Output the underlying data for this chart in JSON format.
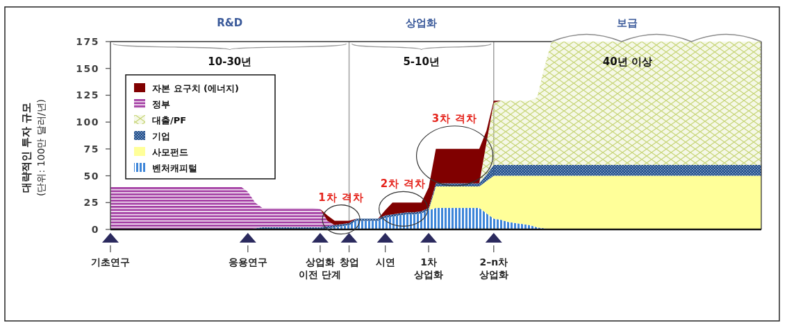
{
  "chart_data": {
    "type": "area",
    "stacked": true,
    "categories": [
      "기초연구",
      null,
      null,
      null,
      null,
      null,
      null,
      null,
      null,
      null,
      null,
      null,
      null,
      null,
      null,
      null,
      null,
      null,
      null,
      "응용연구",
      null,
      null,
      null,
      null,
      null,
      null,
      null,
      null,
      null,
      "상업화\n이전 단계",
      null,
      null,
      null,
      "창업",
      null,
      null,
      null,
      null,
      "시연",
      null,
      null,
      null,
      null,
      null,
      "1차\n상업화",
      null,
      null,
      null,
      null,
      null,
      null,
      null,
      null,
      "2–n차\n상업화",
      null,
      null,
      null,
      null,
      null,
      null,
      null,
      null,
      null,
      null,
      null,
      null,
      null,
      null,
      null,
      null,
      null,
      null,
      null,
      null,
      null,
      null,
      null,
      null,
      null,
      null,
      null,
      null,
      null,
      null,
      null,
      null,
      null,
      null,
      null,
      null,
      null
    ],
    "series": [
      {
        "name": "벤처캐피털",
        "color": "#3d85d8",
        "values": [
          null,
          null,
          null,
          null,
          null,
          null,
          null,
          null,
          null,
          null,
          null,
          null,
          null,
          null,
          null,
          null,
          null,
          null,
          null,
          null,
          null,
          null,
          null,
          null,
          null,
          null,
          null,
          null,
          null,
          0,
          1,
          2,
          3,
          4,
          8,
          8,
          8,
          8,
          11,
          12,
          13,
          14,
          14,
          15,
          18,
          20,
          20,
          20,
          20,
          20,
          20,
          20,
          15,
          10,
          9,
          7,
          6,
          5,
          4,
          2,
          1,
          0,
          null,
          null,
          null,
          null,
          null,
          null,
          null,
          null,
          null,
          null,
          null,
          null,
          null,
          null,
          null,
          null,
          null,
          null,
          null,
          null,
          null,
          null,
          null,
          null,
          null,
          null,
          null,
          null,
          null
        ]
      },
      {
        "name": "사모펀드",
        "color": "#ffff99",
        "values": [
          null,
          null,
          null,
          null,
          null,
          null,
          null,
          null,
          null,
          null,
          null,
          null,
          null,
          null,
          null,
          null,
          null,
          null,
          null,
          null,
          null,
          null,
          null,
          null,
          null,
          null,
          null,
          null,
          null,
          null,
          null,
          null,
          null,
          null,
          null,
          null,
          null,
          null,
          null,
          null,
          null,
          null,
          null,
          null,
          0,
          20,
          20,
          20,
          20,
          20,
          20,
          20,
          30,
          40,
          41,
          43,
          44,
          45,
          46,
          48,
          49,
          50,
          50,
          50,
          50,
          50,
          50,
          50,
          50,
          50,
          50,
          50,
          50,
          50,
          50,
          50,
          50,
          50,
          50,
          50,
          50,
          50,
          50,
          50,
          50,
          50,
          50,
          50,
          50,
          50,
          50
        ]
      },
      {
        "name": "기업",
        "color": "#1f4e8c",
        "values": [
          null,
          null,
          null,
          null,
          null,
          null,
          null,
          null,
          null,
          null,
          null,
          null,
          null,
          null,
          null,
          null,
          null,
          null,
          null,
          0,
          1,
          2,
          2,
          2,
          2,
          2,
          2,
          2,
          2,
          2,
          2,
          2,
          2,
          2,
          2,
          2,
          2,
          2,
          2,
          2,
          2,
          2,
          2,
          2,
          2,
          3,
          3,
          3,
          3,
          3,
          3,
          3,
          6,
          10,
          10,
          10,
          10,
          10,
          10,
          10,
          10,
          10,
          10,
          10,
          10,
          10,
          10,
          10,
          10,
          10,
          10,
          10,
          10,
          10,
          10,
          10,
          10,
          10,
          10,
          10,
          10,
          10,
          10,
          10,
          10,
          10,
          10,
          10,
          10,
          10,
          10
        ]
      },
      {
        "name": "대출/PF",
        "color": "#c8d67a",
        "values": [
          null,
          null,
          null,
          null,
          null,
          null,
          null,
          null,
          null,
          null,
          null,
          null,
          null,
          null,
          null,
          null,
          null,
          null,
          null,
          null,
          null,
          null,
          null,
          null,
          null,
          null,
          null,
          null,
          null,
          null,
          null,
          null,
          null,
          null,
          null,
          null,
          null,
          null,
          null,
          null,
          null,
          null,
          null,
          null,
          null,
          null,
          null,
          null,
          null,
          null,
          null,
          0,
          30,
          58,
          60,
          60,
          60,
          60,
          60,
          63,
          91,
          115,
          115,
          115,
          115,
          115,
          115,
          115,
          115,
          115,
          115,
          115,
          115,
          115,
          115,
          115,
          115,
          115,
          115,
          115,
          115,
          115,
          115,
          115,
          115,
          115,
          115,
          115,
          115,
          115,
          115
        ]
      },
      {
        "name": "정부",
        "color": "#a43fa4",
        "values": [
          40,
          40,
          40,
          40,
          40,
          40,
          40,
          40,
          40,
          40,
          40,
          40,
          40,
          40,
          40,
          40,
          40,
          40,
          40,
          35,
          24,
          18,
          18,
          18,
          18,
          18,
          18,
          18,
          18,
          17,
          5,
          0,
          null,
          null,
          null,
          null,
          null,
          null,
          null,
          null,
          null,
          null,
          null,
          null,
          null,
          null,
          null,
          null,
          null,
          null,
          null,
          null,
          null,
          null,
          null,
          null,
          null,
          null,
          null,
          null,
          null,
          null,
          null,
          null,
          null,
          null,
          null,
          null,
          null,
          null,
          null,
          null,
          null,
          null,
          null,
          null,
          null,
          null,
          null,
          null,
          null,
          null,
          null,
          null,
          null,
          null,
          null,
          null,
          null,
          null,
          null
        ]
      },
      {
        "name": "자본 요구치 (에너지)",
        "color": "#800000",
        "values": [
          null,
          null,
          null,
          null,
          null,
          null,
          null,
          null,
          null,
          null,
          null,
          null,
          null,
          null,
          null,
          null,
          null,
          null,
          null,
          null,
          null,
          null,
          null,
          null,
          null,
          null,
          null,
          null,
          null,
          0,
          5,
          4,
          3,
          2,
          0,
          null,
          null,
          0,
          5,
          11,
          10,
          9,
          9,
          8,
          19,
          32,
          32,
          32,
          32,
          32,
          32,
          32,
          11,
          2,
          0,
          null,
          null,
          null,
          null,
          null,
          null,
          null,
          null,
          null,
          null,
          null,
          null,
          null,
          null,
          null,
          null,
          null,
          null,
          null,
          null,
          null,
          null,
          null,
          null,
          null,
          null,
          null,
          null,
          null,
          null,
          null,
          null,
          null,
          null,
          null,
          null
        ]
      }
    ],
    "ylabel": "대략적인 투자 규모\n(단위: 100만 달러/년)",
    "ylim": [
      0,
      175
    ],
    "yticks": [
      0,
      25,
      50,
      75,
      100,
      125,
      150,
      175
    ],
    "ref_lines": [
      {
        "axis": "x",
        "value": "창업",
        "color": "#a0a0a0"
      },
      {
        "axis": "x",
        "value": "2–n차\n상업화",
        "color": "#a0a0a0"
      }
    ],
    "annotations": [
      "R&D",
      "상업화",
      "보급",
      "10-30년",
      "5-10년",
      "40년 이상",
      "1차 격차",
      "2차 격차",
      "3차 격차"
    ],
    "legend": "top left"
  }
}
